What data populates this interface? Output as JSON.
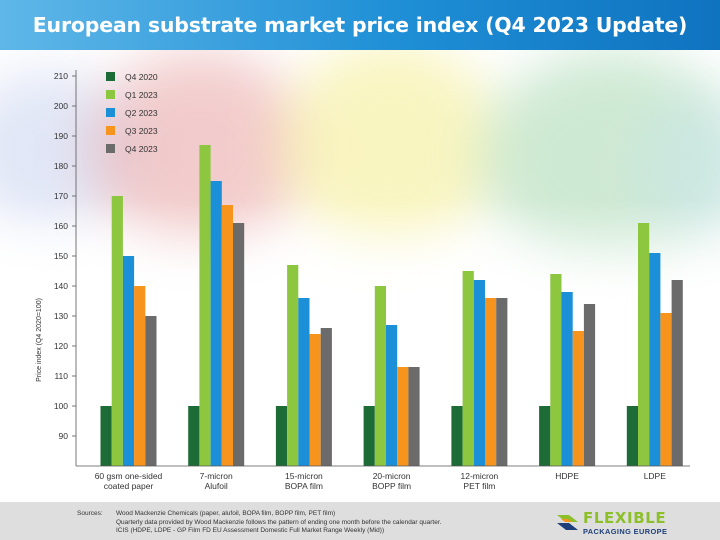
{
  "header": {
    "title": "European substrate market price index (Q4 2023 Update)"
  },
  "chart_data": {
    "type": "bar",
    "ylabel": "Price index (Q4 2020=100)",
    "ylim": [
      80,
      215
    ],
    "yticks": [
      90,
      100,
      110,
      120,
      130,
      140,
      150,
      160,
      170,
      180,
      190,
      200,
      210
    ],
    "grid": false,
    "legend_position": "top-left",
    "categories": [
      [
        "60 gsm one-sided",
        "coated paper"
      ],
      [
        "7-micron",
        "Alufoil"
      ],
      [
        "15-micron",
        "BOPA film"
      ],
      [
        "20-micron",
        "BOPP film"
      ],
      [
        "12-micron",
        "PET film"
      ],
      [
        "HDPE"
      ],
      [
        "LDPE"
      ]
    ],
    "series": [
      {
        "name": "Q4 2020",
        "color": "#1d6b36",
        "values": [
          100,
          100,
          100,
          100,
          100,
          100,
          100
        ]
      },
      {
        "name": "Q1 2023",
        "color": "#8dc63f",
        "values": [
          170,
          187,
          147,
          140,
          145,
          144,
          161
        ]
      },
      {
        "name": "Q2 2023",
        "color": "#1b8fd8",
        "values": [
          150,
          175,
          136,
          127,
          142,
          138,
          151
        ]
      },
      {
        "name": "Q3 2023",
        "color": "#f7941d",
        "values": [
          140,
          167,
          124,
          113,
          136,
          125,
          131
        ]
      },
      {
        "name": "Q4 2023",
        "color": "#6b6b6b",
        "values": [
          130,
          161,
          126,
          113,
          136,
          134,
          142
        ]
      }
    ]
  },
  "footer": {
    "sources_label": "Sources:",
    "sources": [
      "Wood Mackenzie Chemicals (paper, alufoil, BOPA film, BOPP film, PET film)",
      "Quarterly data provided by Wood Mackenzie follows the pattern of ending one month before the calendar quarter.",
      "ICIS (HDPE, LDPE - GP Film FD EU Assessment Domestic Full Market Range Weekly (Mid))"
    ],
    "logo_word1": "FLEXIBLE",
    "logo_word2": "PACKAGING EUROPE",
    "logo_colors": {
      "green": "#8cbf2a",
      "blue": "#1e3f7a",
      "orange": "#f7941d"
    }
  }
}
